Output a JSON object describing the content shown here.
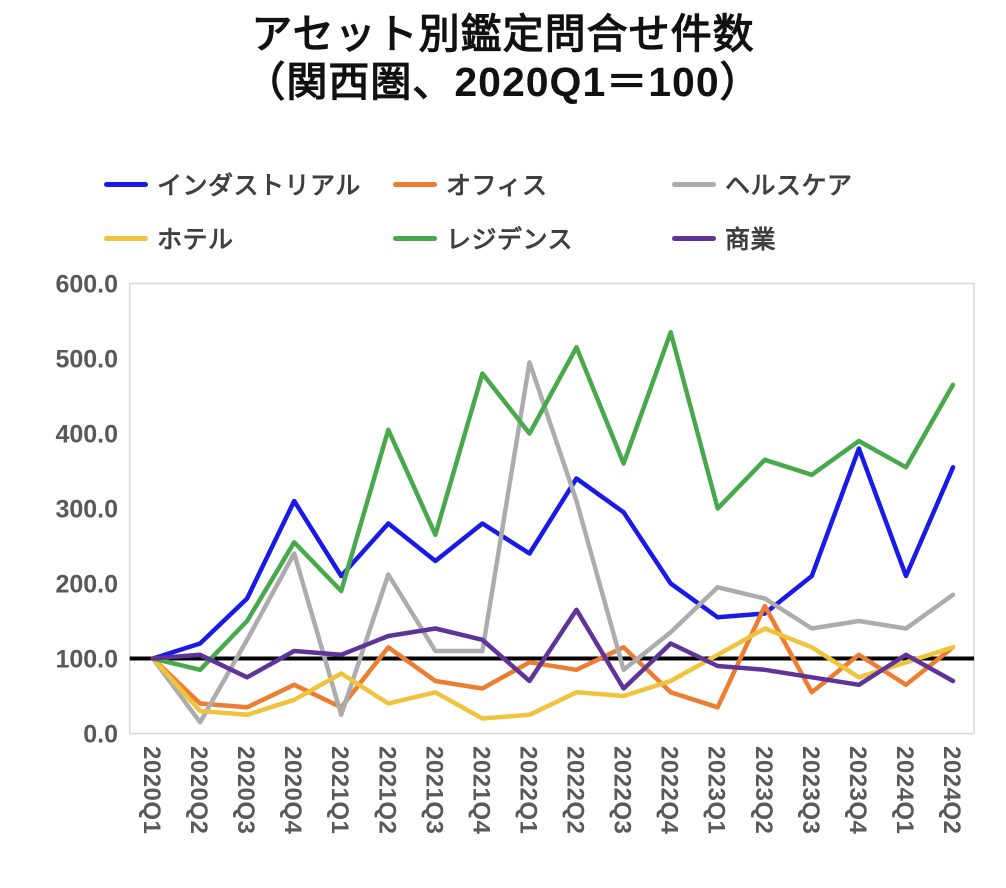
{
  "title": {
    "line1": "アセット別鑑定問合せ件数",
    "line2": "（関西圏、2020Q1＝100）"
  },
  "chart_data": {
    "type": "line",
    "x": [
      "2020Q1",
      "2020Q2",
      "2020Q3",
      "2020Q4",
      "2021Q1",
      "2021Q2",
      "2021Q3",
      "2021Q4",
      "2022Q1",
      "2022Q2",
      "2022Q3",
      "2022Q4",
      "2023Q1",
      "2023Q2",
      "2023Q3",
      "2023Q4",
      "2024Q1",
      "2024Q2"
    ],
    "series": [
      {
        "key": "industrial",
        "name": "インダストリアル",
        "color": "#1a1ae8",
        "values": [
          100,
          120,
          180,
          310,
          210,
          280,
          230,
          280,
          240,
          340,
          295,
          200,
          155,
          160,
          210,
          380,
          210,
          355
        ]
      },
      {
        "key": "office",
        "name": "オフィス",
        "color": "#ED7D31",
        "values": [
          100,
          40,
          35,
          65,
          35,
          115,
          70,
          60,
          95,
          85,
          115,
          55,
          35,
          170,
          55,
          105,
          65,
          115
        ]
      },
      {
        "key": "healthcare",
        "name": "ヘルスケア",
        "color": "#ACACAC",
        "values": [
          100,
          15,
          125,
          240,
          25,
          212,
          110,
          110,
          495,
          310,
          85,
          135,
          195,
          180,
          140,
          150,
          140,
          185
        ]
      },
      {
        "key": "hotel",
        "name": "ホテル",
        "color": "#F0C33C",
        "values": [
          100,
          30,
          25,
          45,
          80,
          40,
          55,
          20,
          25,
          55,
          50,
          70,
          105,
          140,
          115,
          75,
          95,
          115
        ]
      },
      {
        "key": "residence",
        "name": "レジデンス",
        "color": "#48A94C",
        "values": [
          100,
          85,
          150,
          255,
          190,
          405,
          265,
          480,
          400,
          515,
          360,
          535,
          300,
          365,
          345,
          390,
          355,
          465
        ]
      },
      {
        "key": "commercial",
        "name": "商業",
        "color": "#5F3398",
        "values": [
          100,
          105,
          75,
          110,
          105,
          130,
          140,
          125,
          70,
          165,
          60,
          120,
          90,
          85,
          75,
          65,
          105,
          70
        ]
      }
    ],
    "reference_line": {
      "value": 100,
      "color": "#000000"
    },
    "ylim": [
      0,
      600
    ],
    "ytick_step": 100,
    "ytick_labels": [
      "0.0",
      "100.0",
      "200.0",
      "300.0",
      "400.0",
      "500.0",
      "600.0"
    ],
    "xlabel": "",
    "ylabel": "",
    "grid": false,
    "legend_position": "top",
    "legend_rows": [
      [
        "インダストリアル",
        "オフィス",
        "ヘルスケア"
      ],
      [
        "ホテル",
        "レジデンス",
        "商業"
      ]
    ]
  }
}
